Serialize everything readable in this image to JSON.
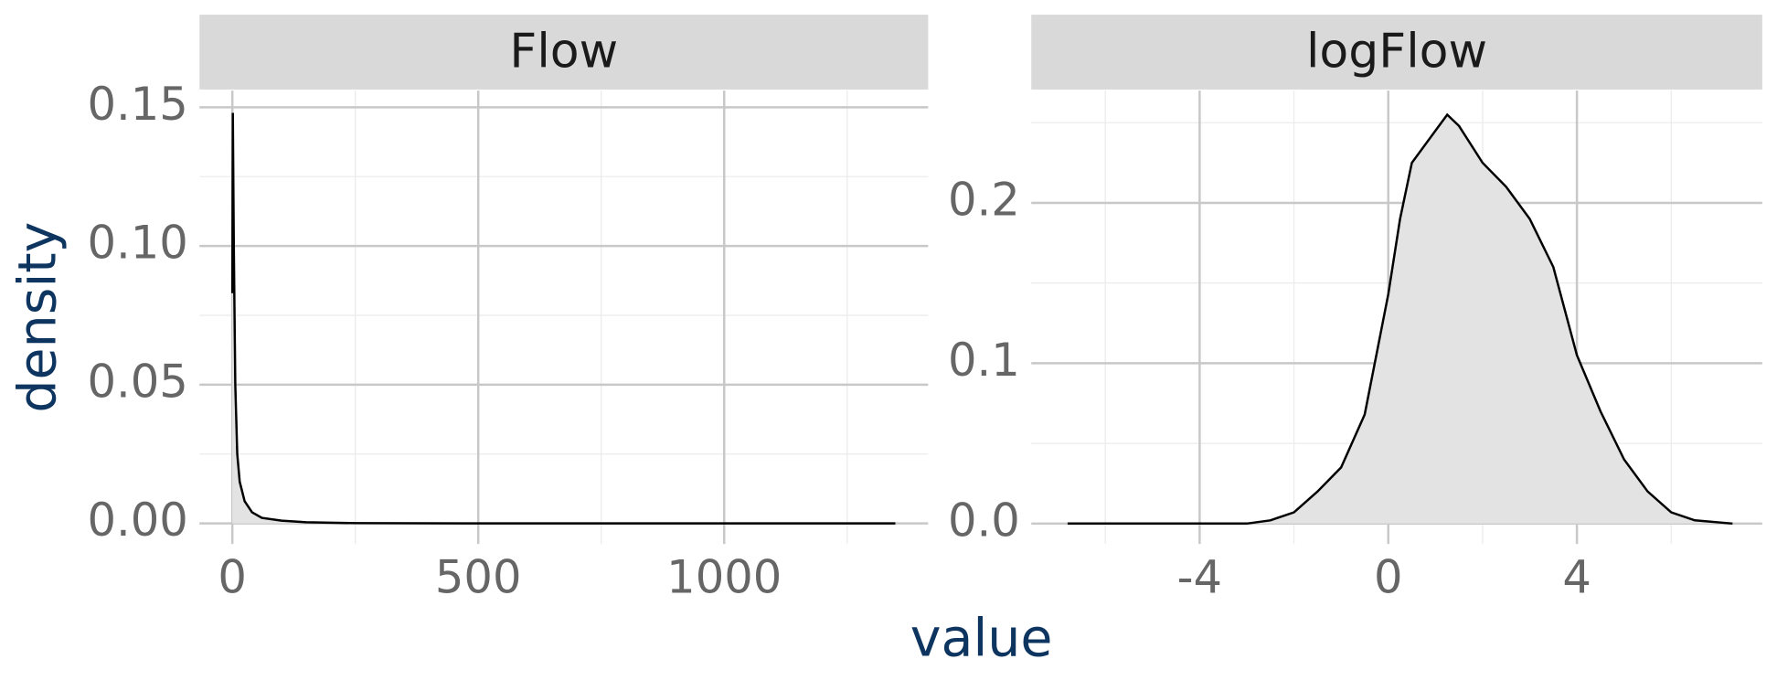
{
  "x_label": "value",
  "y_label": "density",
  "chart_data": [
    {
      "type": "area",
      "title": "Flow",
      "color": "#000000",
      "fill": "#e3e3e3",
      "x": [
        0,
        1,
        3,
        6,
        10,
        15,
        25,
        40,
        60,
        100,
        150,
        250,
        500,
        1000,
        1348
      ],
      "values": [
        0.083,
        0.148,
        0.1,
        0.05,
        0.025,
        0.015,
        0.008,
        0.004,
        0.002,
        0.001,
        0.0004,
        0.0001,
        0,
        0,
        0
      ],
      "xlim": [
        -66.8,
        1414.7
      ],
      "ylim": [
        -0.0074,
        0.156
      ],
      "xticks": [
        0,
        500,
        1000
      ],
      "minor_xticks": [
        250,
        750,
        1250
      ],
      "yticks": [
        {
          "value": 0,
          "label": "0.00"
        },
        {
          "value": 0.05,
          "label": "0.05"
        },
        {
          "value": 0.1,
          "label": "0.10"
        },
        {
          "value": 0.15,
          "label": "0.15"
        }
      ],
      "minor_yticks": [
        0.025,
        0.075,
        0.125
      ],
      "grid": true
    },
    {
      "type": "area",
      "title": "logFlow",
      "color": "#000000",
      "fill": "#e3e3e3",
      "x": [
        -6.8,
        -3,
        -2.5,
        -2,
        -1.5,
        -1,
        -0.5,
        0,
        0.25,
        0.5,
        1,
        1.25,
        1.5,
        2,
        2.5,
        3,
        3.5,
        4,
        4.5,
        5,
        5.5,
        6,
        6.5,
        7.3
      ],
      "values": [
        0,
        0,
        0.002,
        0.007,
        0.02,
        0.035,
        0.068,
        0.143,
        0.19,
        0.225,
        0.245,
        0.255,
        0.248,
        0.225,
        0.21,
        0.19,
        0.16,
        0.105,
        0.07,
        0.04,
        0.02,
        0.007,
        0.002,
        0
      ],
      "xlim": [
        -7.57,
        7.93
      ],
      "ylim": [
        -0.0127,
        0.27
      ],
      "xticks": [
        -4,
        0,
        4
      ],
      "minor_xticks": [
        -6,
        -2,
        2,
        6
      ],
      "yticks": [
        {
          "value": 0,
          "label": "0.0"
        },
        {
          "value": 0.1,
          "label": "0.1"
        },
        {
          "value": 0.2,
          "label": "0.2"
        }
      ],
      "minor_yticks": [
        0.05,
        0.15,
        0.25
      ],
      "grid": true
    }
  ]
}
